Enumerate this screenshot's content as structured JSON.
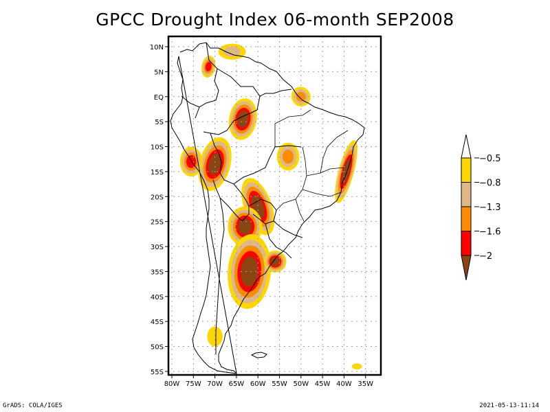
{
  "title": "GPCC Drought Index 06-month SEP2008",
  "footer": {
    "left": "GrADS: COLA/IGES",
    "right": "2021-05-13-11:14"
  },
  "colors": {
    "class_-0.5_to_-0.8": "#ffd700",
    "class_-0.8_to_-1.3": "#deb887",
    "class_-1.3_to_-1.6": "#ff8c00",
    "class_-1.6_to_-2": "#ff0000",
    "class_below_-2": "#8b4513",
    "coastline": "#000000",
    "grid": "#a0a0a0"
  },
  "chart_data": {
    "type": "heatmap",
    "title": "GPCC Drought Index 06-month SEP2008",
    "variable": "GPCC Drought Index (6-month)",
    "period": "SEP2008",
    "region": "South America",
    "lon_range": [
      -81,
      -31
    ],
    "lat_range": [
      -56,
      12
    ],
    "x_ticks": [
      "80W",
      "75W",
      "70W",
      "65W",
      "60W",
      "55W",
      "50W",
      "45W",
      "40W",
      "35W"
    ],
    "x_tick_values": [
      -80,
      -75,
      -70,
      -65,
      -60,
      -55,
      -50,
      -45,
      -40,
      -35
    ],
    "y_ticks": [
      "10N",
      "5N",
      "EQ",
      "5S",
      "10S",
      "15S",
      "20S",
      "25S",
      "30S",
      "35S",
      "40S",
      "45S",
      "50S",
      "55S"
    ],
    "y_tick_values": [
      10,
      5,
      0,
      -5,
      -10,
      -15,
      -20,
      -25,
      -30,
      -35,
      -40,
      -45,
      -50,
      -55
    ],
    "grid": true,
    "legend": {
      "placement": "right",
      "labels": [
        "-0.5",
        "-0.8",
        "-1.3",
        "-1.6",
        "-2"
      ],
      "levels": [
        -0.5,
        -0.8,
        -1.3,
        -1.6,
        -2
      ],
      "classes": [
        {
          "range": "> -0.5",
          "color": "#ffffff"
        },
        {
          "range": "-0.5 to -0.8",
          "color": "#ffd700"
        },
        {
          "range": "-0.8 to -1.3",
          "color": "#deb887"
        },
        {
          "range": "-1.3 to -1.6",
          "color": "#ff8c00"
        },
        {
          "range": "-1.6 to -2",
          "color": "#ff0000"
        },
        {
          "range": "< -2",
          "color": "#8b4513"
        }
      ]
    },
    "regions": [
      {
        "name": "north-colombia-venezuela",
        "peak": -0.8,
        "center": [
          -66,
          9
        ]
      },
      {
        "name": "venezuela-colombia-border",
        "peak": -1.6,
        "center": [
          -71.5,
          6
        ]
      },
      {
        "name": "amapa-para-coast",
        "peak": -1.3,
        "center": [
          -50,
          0
        ]
      },
      {
        "name": "central-amazon",
        "peak": -2.0,
        "center": [
          -63.5,
          -4.5
        ]
      },
      {
        "name": "peru-bolivia",
        "peak": -2.0,
        "center": [
          -70,
          -13.5
        ]
      },
      {
        "name": "peru-central",
        "peak": -1.6,
        "center": [
          -75.5,
          -13
        ]
      },
      {
        "name": "central-brazil",
        "peak": -1.3,
        "center": [
          -53,
          -12
        ]
      },
      {
        "name": "eastern-brazil-coast",
        "peak": -2.0,
        "center": [
          -39.5,
          -15
        ]
      },
      {
        "name": "paraguay-chaco",
        "peak": -2.0,
        "center": [
          -60,
          -22
        ]
      },
      {
        "name": "northern-argentina",
        "peak": -2.0,
        "center": [
          -63,
          -26
        ]
      },
      {
        "name": "pampas-argentina",
        "peak": -2.0,
        "center": [
          -62,
          -35
        ]
      },
      {
        "name": "uruguay-south",
        "peak": -2.0,
        "center": [
          -56,
          -33
        ]
      },
      {
        "name": "patagonia-south",
        "peak": -0.5,
        "center": [
          -70,
          -48
        ]
      },
      {
        "name": "south-georgia",
        "peak": -0.5,
        "center": [
          -37,
          -54
        ]
      }
    ]
  }
}
